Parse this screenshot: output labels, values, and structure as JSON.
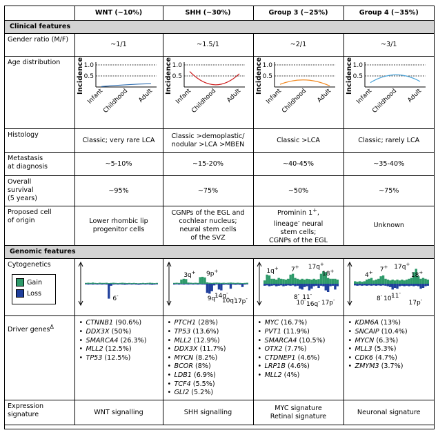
{
  "header": {
    "col0": "",
    "wnt": "WNT (~10%)",
    "shh": "SHH (~30%)",
    "g3": "Group 3 (~25%)",
    "g4": "Group 4 (~35%)"
  },
  "sections": {
    "clinical": "Clinical features",
    "genomic": "Genomic features"
  },
  "rows": {
    "gender": {
      "label": "Gender ratio (M/F)",
      "wnt": "~1/1",
      "shh": "~1.5/1",
      "g3": "~2/1",
      "g4": "~3/1"
    },
    "age": {
      "label": "Age distribution"
    },
    "histology": {
      "label": "Histology",
      "wnt": "Classic; very rare LCA",
      "shh_l1": "Classic >demoplastic/",
      "shh_l2": "nodular >LCA >MBEN",
      "g3": "Classic >LCA",
      "g4": "Classic; rarely LCA"
    },
    "metastasis": {
      "label_l1": "Metastasis",
      "label_l2": "at diagnosis",
      "wnt": "~5-10%",
      "shh": "~15-20%",
      "g3": "~40-45%",
      "g4": "~35-40%"
    },
    "survival": {
      "label_l1": "Overall",
      "label_l2": "survival",
      "label_l3": "(5 years)",
      "wnt": "~95%",
      "shh": "~75%",
      "g3": "~50%",
      "g4": "~75%"
    },
    "origin": {
      "label_l1": "Proposed cell",
      "label_l2": "of origin",
      "wnt_l1": "Lower rhombic lip",
      "wnt_l2": "progenitor cells",
      "shh_l1": "CGNPs of the EGL and",
      "shh_l2": "cochlear nucleus;",
      "shh_l3": "neural stem cells",
      "shh_l4": "of the SVZ",
      "g3_l1": "Prominin 1",
      "g3_sup1": "+",
      "g3_l2": "lineage",
      "g3_sup2": "-",
      "g3_l2b": " neural",
      "g3_l3": "stem cells;",
      "g3_l4": "CGNPs of the EGL",
      "g4": "Unknown"
    },
    "cytogenetics": {
      "label": "Cytogenetics",
      "legend_gain": "Gain",
      "legend_loss": "Loss"
    },
    "drivers": {
      "label": "Driver genes",
      "label_sup": "Δ"
    },
    "expression": {
      "label_l1": "Expression",
      "label_l2": "signature",
      "wnt": "WNT signalling",
      "shh": "SHH signalling",
      "g3_l1": "MYC signature",
      "g3_l2": "Retinal signature",
      "g4": "Neuronal signature"
    }
  },
  "chart_data": [
    {
      "type": "line",
      "group": "WNT",
      "categories": [
        "Infant",
        "Childhood",
        "Adult"
      ],
      "ylabel": "Incidence",
      "yticks": [
        "1.0",
        "0.5",
        "0.0"
      ],
      "ylim": [
        0,
        1
      ],
      "values": [
        0.02,
        0.1,
        0.15
      ],
      "color": "#2f6db0"
    },
    {
      "type": "line",
      "group": "SHH",
      "categories": [
        "Infant",
        "Childhood",
        "Adult"
      ],
      "ylabel": "Incidence",
      "yticks": [
        "1.0",
        "0.5",
        "0.0"
      ],
      "ylim": [
        0,
        1
      ],
      "values": [
        0.7,
        0.1,
        0.6
      ],
      "color": "#cc1f1f"
    },
    {
      "type": "line",
      "group": "Group 3",
      "categories": [
        "Infant",
        "Childhood",
        "Adult"
      ],
      "ylabel": "Incidence",
      "yticks": [
        "1.0",
        "0.5",
        "0.0"
      ],
      "ylim": [
        0,
        1
      ],
      "values": [
        0.12,
        0.32,
        0.05
      ],
      "color": "#f08a24"
    },
    {
      "type": "line",
      "group": "Group 4",
      "categories": [
        "Infant",
        "Childhood",
        "Adult"
      ],
      "ylabel": "Incidence",
      "yticks": [
        "1.0",
        "0.5",
        "0.0"
      ],
      "ylim": [
        0,
        1
      ],
      "values": [
        0.2,
        0.55,
        0.25
      ],
      "color": "#4aa3d8"
    }
  ],
  "cyto": {
    "gain_color": "#2e9a6a",
    "loss_color": "#1f3f9c",
    "wnt": {
      "labels": [
        "6-"
      ],
      "gain": [
        0.05,
        0.06,
        0.05,
        0.07,
        0.05,
        0.04,
        0.06,
        0.05,
        0.05,
        0.06,
        0.04,
        0.05,
        0.06,
        0.05,
        0.04,
        0.05,
        0.06,
        0.05,
        0.04,
        0.05,
        0.04,
        0.05,
        0.04,
        0.03,
        0.04,
        0.05,
        0.04,
        0.05,
        0.06,
        0.05,
        0.04,
        0.05
      ],
      "loss": [
        0.04,
        0.05,
        0.04,
        0.05,
        0.04,
        0.05,
        0.04,
        0.05,
        0.04,
        0.05,
        0.9,
        0.12,
        0.05,
        0.04,
        0.05,
        0.04,
        0.05,
        0.06,
        0.05,
        0.04,
        0.05,
        0.04,
        0.05,
        0.06,
        0.05,
        0.04,
        0.05,
        0.04,
        0.05,
        0.06,
        0.05,
        0.04
      ]
    },
    "shh": {
      "labels": [
        "3q+",
        "9p+",
        "9q-",
        "14q-",
        "10q-",
        "17p-"
      ],
      "gain": [
        0.05,
        0.06,
        0.05,
        0.25,
        0.3,
        0.28,
        0.07,
        0.06,
        0.05,
        0.06,
        0.05,
        0.4,
        0.42,
        0.38,
        0.08,
        0.06,
        0.05,
        0.06,
        0.07,
        0.06,
        0.05,
        0.06,
        0.05,
        0.06,
        0.07,
        0.06,
        0.05,
        0.06,
        0.05,
        0.04,
        0.05,
        0.06
      ],
      "loss": [
        0.05,
        0.04,
        0.05,
        0.04,
        0.05,
        0.04,
        0.05,
        0.04,
        0.05,
        0.04,
        0.05,
        0.04,
        0.05,
        0.05,
        0.55,
        0.6,
        0.45,
        0.1,
        0.05,
        0.35,
        0.4,
        0.06,
        0.05,
        0.06,
        0.3,
        0.05,
        0.06,
        0.05,
        0.06,
        0.2,
        0.05,
        0.04
      ]
    },
    "g3": {
      "labels": [
        "1q+",
        "7+",
        "17q+",
        "18+",
        "8-",
        "11-",
        "10-",
        "16q-",
        "17p-"
      ],
      "gain": [
        0.2,
        0.55,
        0.5,
        0.3,
        0.3,
        0.25,
        0.35,
        0.3,
        0.28,
        0.25,
        0.3,
        0.55,
        0.6,
        0.35,
        0.3,
        0.25,
        0.3,
        0.25,
        0.3,
        0.28,
        0.25,
        0.3,
        0.25,
        0.28,
        0.6,
        0.75,
        0.7,
        0.35,
        0.3,
        0.3,
        0.3,
        0.25
      ],
      "loss": [
        0.12,
        0.1,
        0.15,
        0.12,
        0.1,
        0.15,
        0.12,
        0.1,
        0.15,
        0.12,
        0.1,
        0.12,
        0.1,
        0.15,
        0.12,
        0.3,
        0.35,
        0.2,
        0.15,
        0.4,
        0.3,
        0.15,
        0.12,
        0.25,
        0.12,
        0.15,
        0.4,
        0.5,
        0.15,
        0.12,
        0.35,
        0.15
      ]
    },
    "g4": {
      "labels": [
        "4+",
        "7+",
        "17q+",
        "18+",
        "8-",
        "10-",
        "11-",
        "17p-"
      ],
      "gain": [
        0.15,
        0.12,
        0.15,
        0.12,
        0.15,
        0.25,
        0.3,
        0.35,
        0.2,
        0.25,
        0.3,
        0.45,
        0.5,
        0.3,
        0.25,
        0.2,
        0.25,
        0.2,
        0.25,
        0.2,
        0.25,
        0.2,
        0.25,
        0.3,
        0.35,
        0.7,
        0.9,
        0.45,
        0.3,
        0.35,
        0.3,
        0.25
      ],
      "loss": [
        0.1,
        0.12,
        0.1,
        0.12,
        0.1,
        0.12,
        0.1,
        0.12,
        0.1,
        0.12,
        0.1,
        0.12,
        0.1,
        0.12,
        0.15,
        0.2,
        0.35,
        0.25,
        0.3,
        0.15,
        0.12,
        0.15,
        0.12,
        0.15,
        0.12,
        0.15,
        0.12,
        0.15,
        0.3,
        0.25,
        0.15,
        0.12
      ]
    }
  },
  "genes": {
    "wnt": [
      {
        "name": "CTNNB1",
        "pct": " (90.6%)"
      },
      {
        "name": "DDX3X",
        "pct": " (50%)"
      },
      {
        "name": "SMARCA4",
        "pct": " (26.3%)"
      },
      {
        "name": "MLL2",
        "pct": " (12.5%)"
      },
      {
        "name": "TP53",
        "pct": " (12.5%)"
      }
    ],
    "shh": [
      {
        "name": "PTCH1",
        "pct": " (28%)"
      },
      {
        "name": "TP53",
        "pct": " (13.6%)"
      },
      {
        "name": "MLL2",
        "pct": " (12.9%)"
      },
      {
        "name": "DDX3X",
        "pct": " (11.7%)"
      },
      {
        "name": "MYCN",
        "pct": " (8.2%)"
      },
      {
        "name": "BCOR",
        "pct": " (8%)"
      },
      {
        "name": "LDB1",
        "pct": " (6.9%)"
      },
      {
        "name": "TCF4",
        "pct": " (5.5%)"
      },
      {
        "name": "GLI2",
        "pct": " (5.2%)"
      }
    ],
    "g3": [
      {
        "name": "MYC",
        "pct": " (16.7%)"
      },
      {
        "name": "PVT1",
        "pct": " (11.9%)"
      },
      {
        "name": "SMARCA4",
        "pct": " (10.5%)"
      },
      {
        "name": "OTX2",
        "pct": " (7.7%)"
      },
      {
        "name": "CTDNEP1",
        "pct": " (4.6%)"
      },
      {
        "name": "LRP1B",
        "pct": " (4.6%)"
      },
      {
        "name": "MLL2",
        "pct": " (4%)"
      }
    ],
    "g4": [
      {
        "name": "KDM6A",
        "pct": " (13%)"
      },
      {
        "name": "SNCAIP",
        "pct": " (10.4%)"
      },
      {
        "name": "MYCN",
        "pct": " (6.3%)"
      },
      {
        "name": "MLL3",
        "pct": " (5.3%)"
      },
      {
        "name": "CDK6",
        "pct": " (4.7%)"
      },
      {
        "name": "ZMYM3",
        "pct": " (3.7%)"
      }
    ]
  }
}
